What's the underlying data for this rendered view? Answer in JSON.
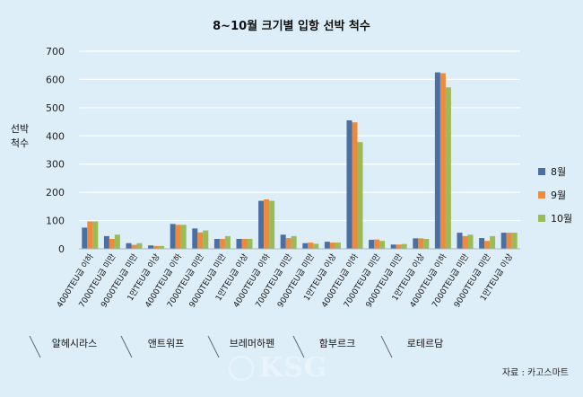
{
  "chart_data": {
    "type": "bar",
    "title": "8~10월 크기별 입항 선박 척수",
    "ylabel": "선박\n척수",
    "ylim": [
      0,
      700
    ],
    "yticks": [
      0,
      100,
      200,
      300,
      400,
      500,
      600,
      700
    ],
    "grid": true,
    "legend_position": "right",
    "categories": [
      "4000TEU급 이하",
      "7000TEU급 미만",
      "9000TEU급 미만",
      "1만TEU급 이상",
      "4000TEU급 이하",
      "7000TEU급 미만",
      "9000TEU급 미만",
      "1만TEU급 이상",
      "4000TEU급 이하",
      "7000TEU급 미만",
      "9000TEU급 미만",
      "1만TEU급 이상",
      "4000TEU급 이하",
      "7000TEU급 미만",
      "9000TEU급 미만",
      "1만TEU급 이상",
      "4000TEU급 이하",
      "7000TEU급 미만",
      "9000TEU급 미만",
      "1만TEU급 이상"
    ],
    "groups": [
      "알헤시라스",
      "앤트워프",
      "브레머하펜",
      "함부르크",
      "로테르담"
    ],
    "series": [
      {
        "name": "8월",
        "color": "#4a6fa5",
        "values": [
          75,
          45,
          20,
          12,
          88,
          72,
          35,
          35,
          170,
          50,
          20,
          25,
          455,
          32,
          15,
          37,
          625,
          57,
          38,
          57
        ]
      },
      {
        "name": "9월",
        "color": "#ee8a3a",
        "values": [
          97,
          35,
          14,
          10,
          85,
          58,
          35,
          35,
          175,
          38,
          22,
          22,
          448,
          33,
          15,
          37,
          622,
          45,
          28,
          57
        ]
      },
      {
        "name": "10월",
        "color": "#9bbb59",
        "values": [
          97,
          50,
          20,
          10,
          85,
          65,
          45,
          35,
          170,
          45,
          18,
          22,
          378,
          28,
          17,
          35,
          572,
          50,
          45,
          57
        ]
      }
    ]
  },
  "watermark": "KSG",
  "source": "자료 : 카고스마트"
}
